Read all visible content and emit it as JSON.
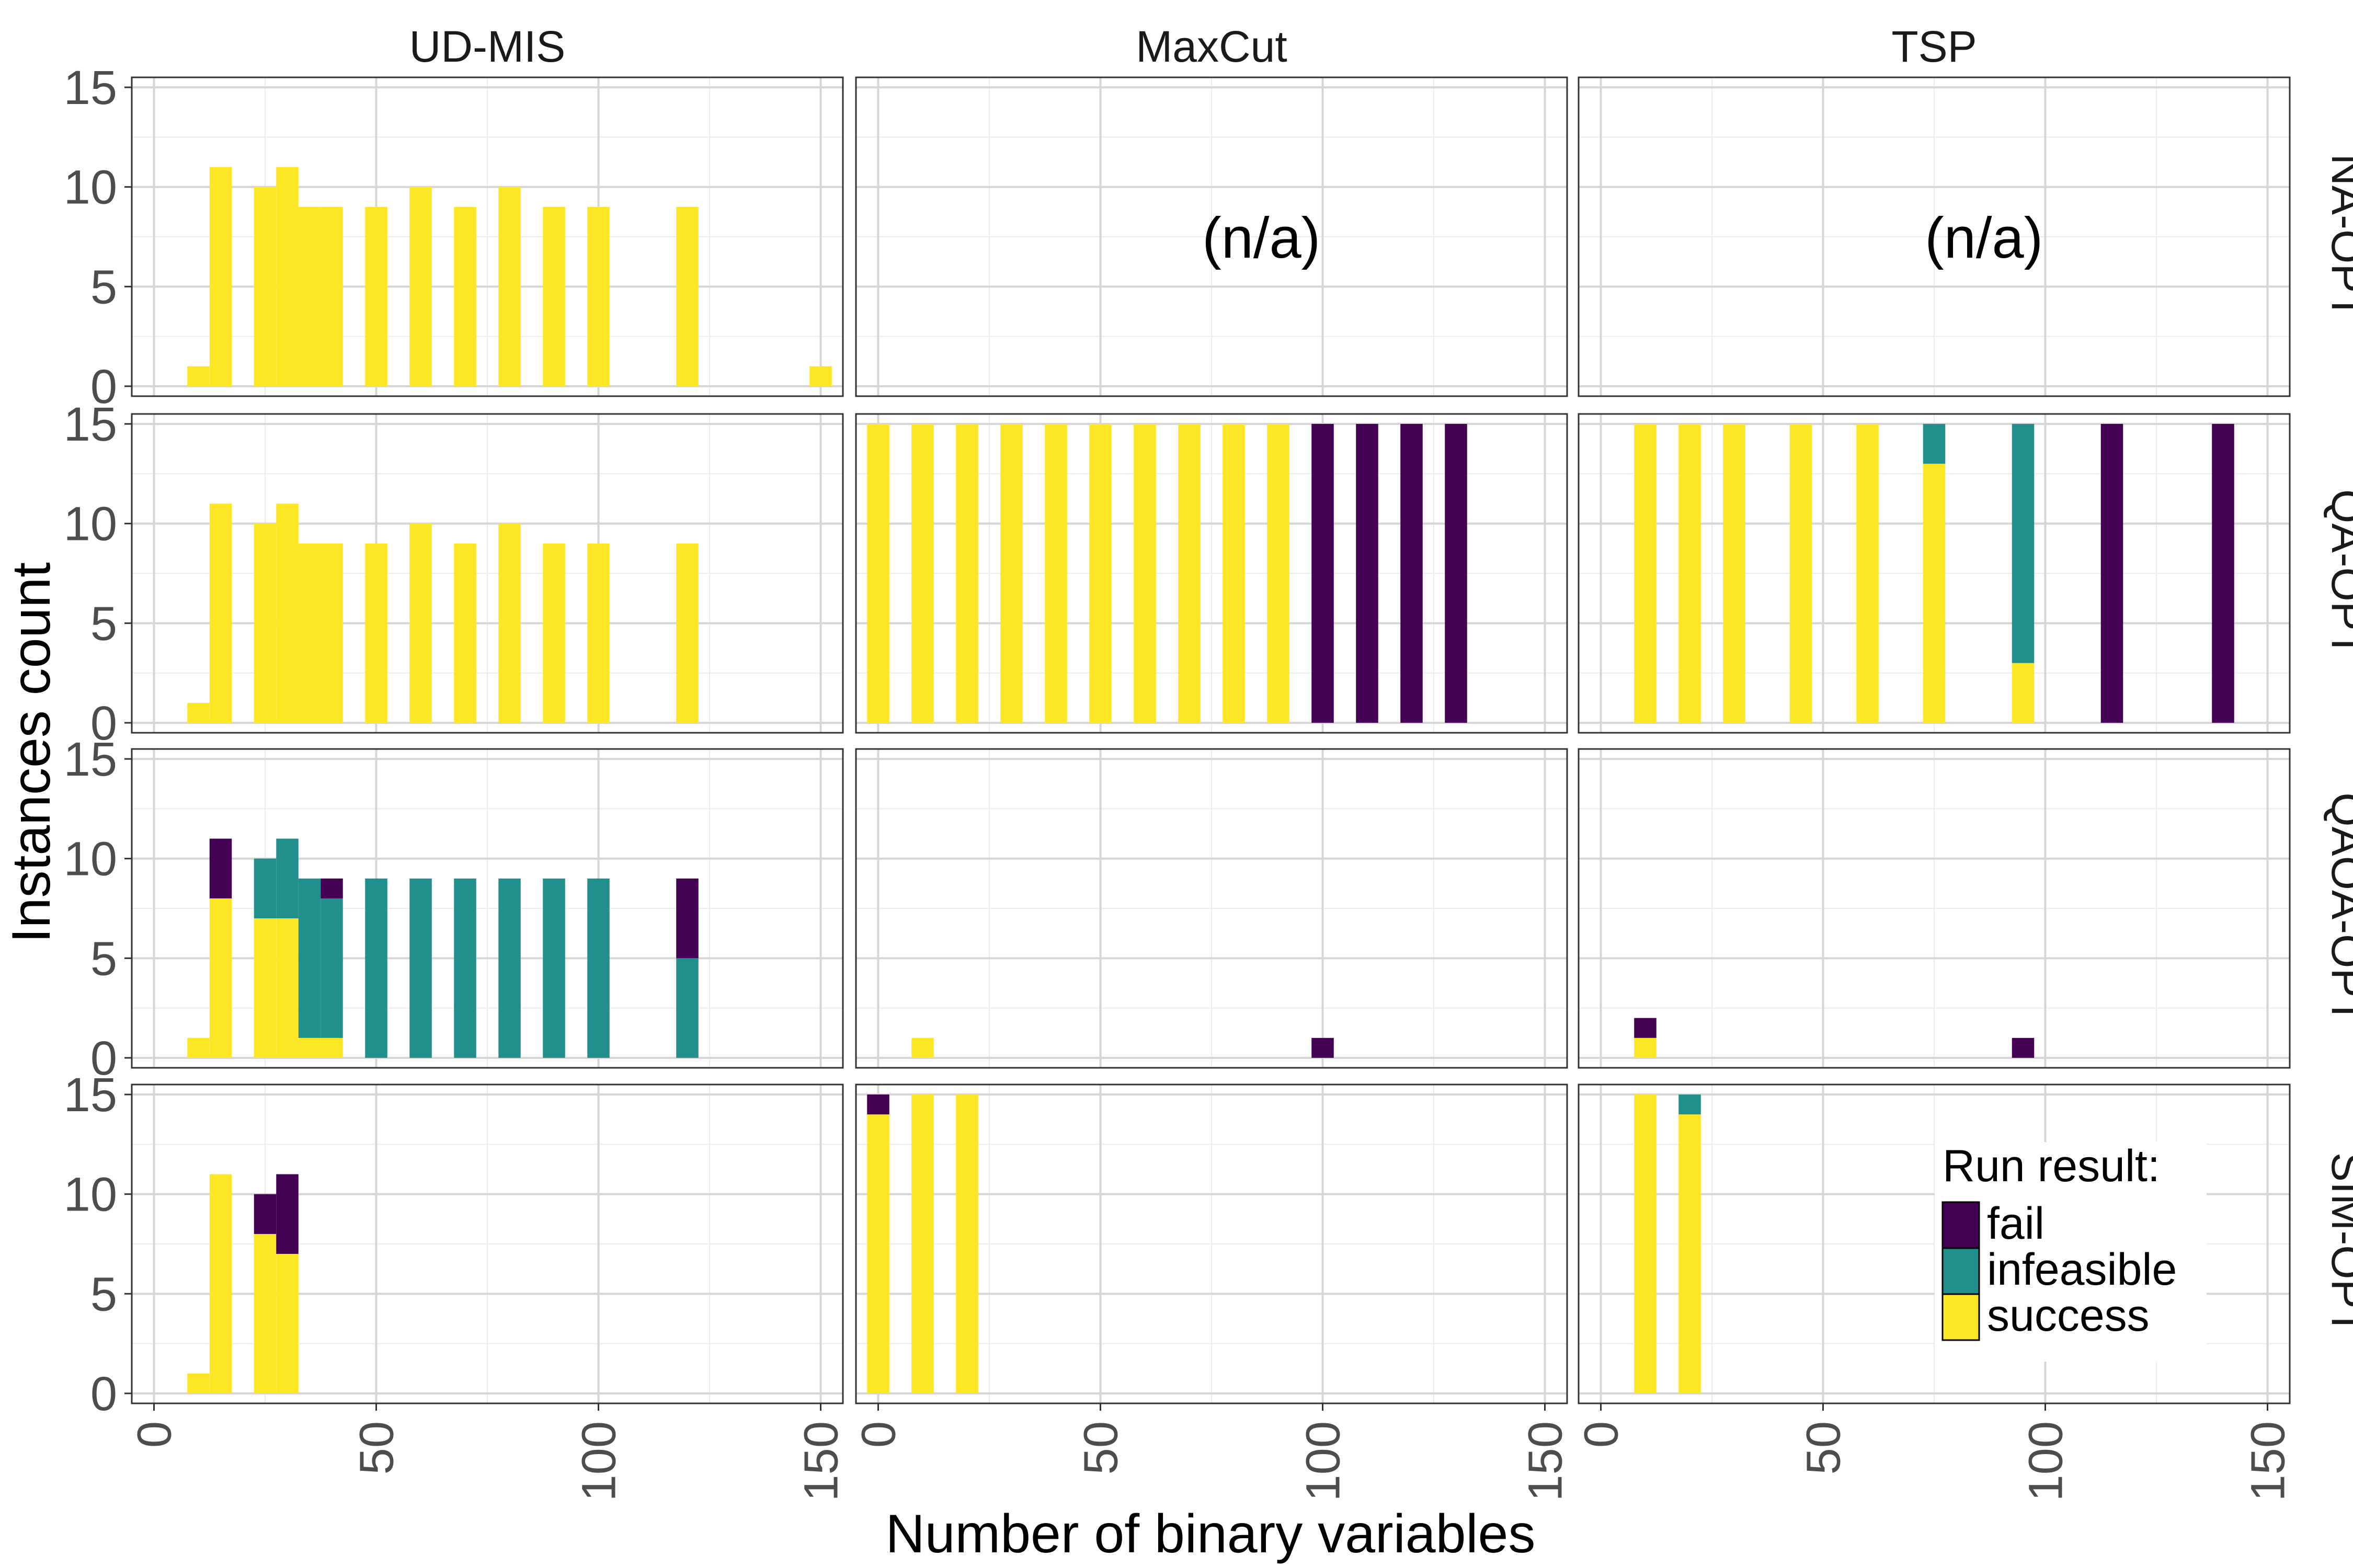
{
  "chart_data": {
    "type": "bar",
    "stacked": true,
    "faceted": true,
    "xlabel": "Number of binary variables",
    "ylabel": "Instances count",
    "xlim": [
      -5,
      155
    ],
    "ylim": [
      -0.5,
      15.5
    ],
    "x_ticks": [
      "0",
      "50",
      "100",
      "150"
    ],
    "x_tick_values": [
      0,
      50,
      100,
      150
    ],
    "y_ticks": [
      "0",
      "5",
      "10",
      "15"
    ],
    "y_tick_values": [
      0,
      5,
      10,
      15
    ],
    "bin_width": 5,
    "columns": [
      "UD-MIS",
      "MaxCut",
      "TSP"
    ],
    "rows": [
      "NA-OPT",
      "QA-OPT",
      "QAOA-OPT",
      "SIM-OPT"
    ],
    "not_available_label": "(n/a)",
    "legend": {
      "title": "Run result:",
      "position": "bottom-right",
      "entries": [
        {
          "key": "fail",
          "label": "fail",
          "color": "#440154"
        },
        {
          "key": "infeasible",
          "label": "infeasible",
          "color": "#21908C"
        },
        {
          "key": "success",
          "label": "success",
          "color": "#FDE725"
        }
      ]
    },
    "panels": [
      {
        "row": "NA-OPT",
        "col": "UD-MIS",
        "na": false,
        "bars": [
          {
            "x": 10,
            "success": 1
          },
          {
            "x": 15,
            "success": 11
          },
          {
            "x": 25,
            "success": 10
          },
          {
            "x": 30,
            "success": 11
          },
          {
            "x": 35,
            "success": 9
          },
          {
            "x": 40,
            "success": 9
          },
          {
            "x": 50,
            "success": 9
          },
          {
            "x": 60,
            "success": 10
          },
          {
            "x": 70,
            "success": 9
          },
          {
            "x": 80,
            "success": 10
          },
          {
            "x": 90,
            "success": 9
          },
          {
            "x": 100,
            "success": 9
          },
          {
            "x": 120,
            "success": 9
          },
          {
            "x": 150,
            "success": 1
          }
        ]
      },
      {
        "row": "NA-OPT",
        "col": "MaxCut",
        "na": true,
        "bars": []
      },
      {
        "row": "NA-OPT",
        "col": "TSP",
        "na": true,
        "bars": []
      },
      {
        "row": "QA-OPT",
        "col": "UD-MIS",
        "na": false,
        "bars": [
          {
            "x": 10,
            "success": 1
          },
          {
            "x": 15,
            "success": 11
          },
          {
            "x": 25,
            "success": 10
          },
          {
            "x": 30,
            "success": 11
          },
          {
            "x": 35,
            "success": 9
          },
          {
            "x": 40,
            "success": 9
          },
          {
            "x": 50,
            "success": 9
          },
          {
            "x": 60,
            "success": 10
          },
          {
            "x": 70,
            "success": 9
          },
          {
            "x": 80,
            "success": 10
          },
          {
            "x": 90,
            "success": 9
          },
          {
            "x": 100,
            "success": 9
          },
          {
            "x": 120,
            "success": 9
          }
        ]
      },
      {
        "row": "QA-OPT",
        "col": "MaxCut",
        "na": false,
        "bars": [
          {
            "x": 0,
            "success": 15
          },
          {
            "x": 10,
            "success": 15
          },
          {
            "x": 20,
            "success": 15
          },
          {
            "x": 30,
            "success": 15
          },
          {
            "x": 40,
            "success": 15
          },
          {
            "x": 50,
            "success": 15
          },
          {
            "x": 60,
            "success": 15
          },
          {
            "x": 70,
            "success": 15
          },
          {
            "x": 80,
            "success": 15
          },
          {
            "x": 90,
            "success": 15
          },
          {
            "x": 100,
            "fail": 15
          },
          {
            "x": 110,
            "fail": 15
          },
          {
            "x": 120,
            "fail": 15
          },
          {
            "x": 130,
            "fail": 15
          }
        ]
      },
      {
        "row": "QA-OPT",
        "col": "TSP",
        "na": false,
        "bars": [
          {
            "x": 10,
            "success": 15
          },
          {
            "x": 20,
            "success": 15
          },
          {
            "x": 30,
            "success": 15
          },
          {
            "x": 45,
            "success": 15
          },
          {
            "x": 60,
            "success": 15
          },
          {
            "x": 75,
            "success": 13,
            "infeasible": 2
          },
          {
            "x": 95,
            "success": 3,
            "infeasible": 12
          },
          {
            "x": 115,
            "fail": 15
          },
          {
            "x": 140,
            "fail": 15
          }
        ]
      },
      {
        "row": "QAOA-OPT",
        "col": "UD-MIS",
        "na": false,
        "bars": [
          {
            "x": 10,
            "success": 1
          },
          {
            "x": 15,
            "success": 8,
            "fail": 3
          },
          {
            "x": 25,
            "success": 7,
            "infeasible": 3
          },
          {
            "x": 30,
            "success": 7,
            "infeasible": 4
          },
          {
            "x": 35,
            "success": 1,
            "infeasible": 8
          },
          {
            "x": 40,
            "success": 1,
            "infeasible": 7,
            "fail": 1
          },
          {
            "x": 50,
            "infeasible": 9
          },
          {
            "x": 60,
            "infeasible": 9
          },
          {
            "x": 70,
            "infeasible": 9
          },
          {
            "x": 80,
            "infeasible": 9
          },
          {
            "x": 90,
            "infeasible": 9
          },
          {
            "x": 100,
            "infeasible": 9
          },
          {
            "x": 120,
            "infeasible": 5,
            "fail": 4
          }
        ]
      },
      {
        "row": "QAOA-OPT",
        "col": "MaxCut",
        "na": false,
        "bars": [
          {
            "x": 10,
            "success": 1
          },
          {
            "x": 100,
            "fail": 1
          }
        ]
      },
      {
        "row": "QAOA-OPT",
        "col": "TSP",
        "na": false,
        "bars": [
          {
            "x": 10,
            "success": 1,
            "fail": 1
          },
          {
            "x": 95,
            "fail": 1
          }
        ]
      },
      {
        "row": "SIM-OPT",
        "col": "UD-MIS",
        "na": false,
        "bars": [
          {
            "x": 10,
            "success": 1
          },
          {
            "x": 15,
            "success": 11
          },
          {
            "x": 25,
            "success": 8,
            "fail": 2
          },
          {
            "x": 30,
            "success": 7,
            "fail": 4
          }
        ]
      },
      {
        "row": "SIM-OPT",
        "col": "MaxCut",
        "na": false,
        "bars": [
          {
            "x": 0,
            "success": 14,
            "fail": 1
          },
          {
            "x": 10,
            "success": 15
          },
          {
            "x": 20,
            "success": 15
          }
        ]
      },
      {
        "row": "SIM-OPT",
        "col": "TSP",
        "na": false,
        "bars": [
          {
            "x": 10,
            "success": 15
          },
          {
            "x": 20,
            "success": 14,
            "infeasible": 1
          }
        ]
      }
    ]
  }
}
